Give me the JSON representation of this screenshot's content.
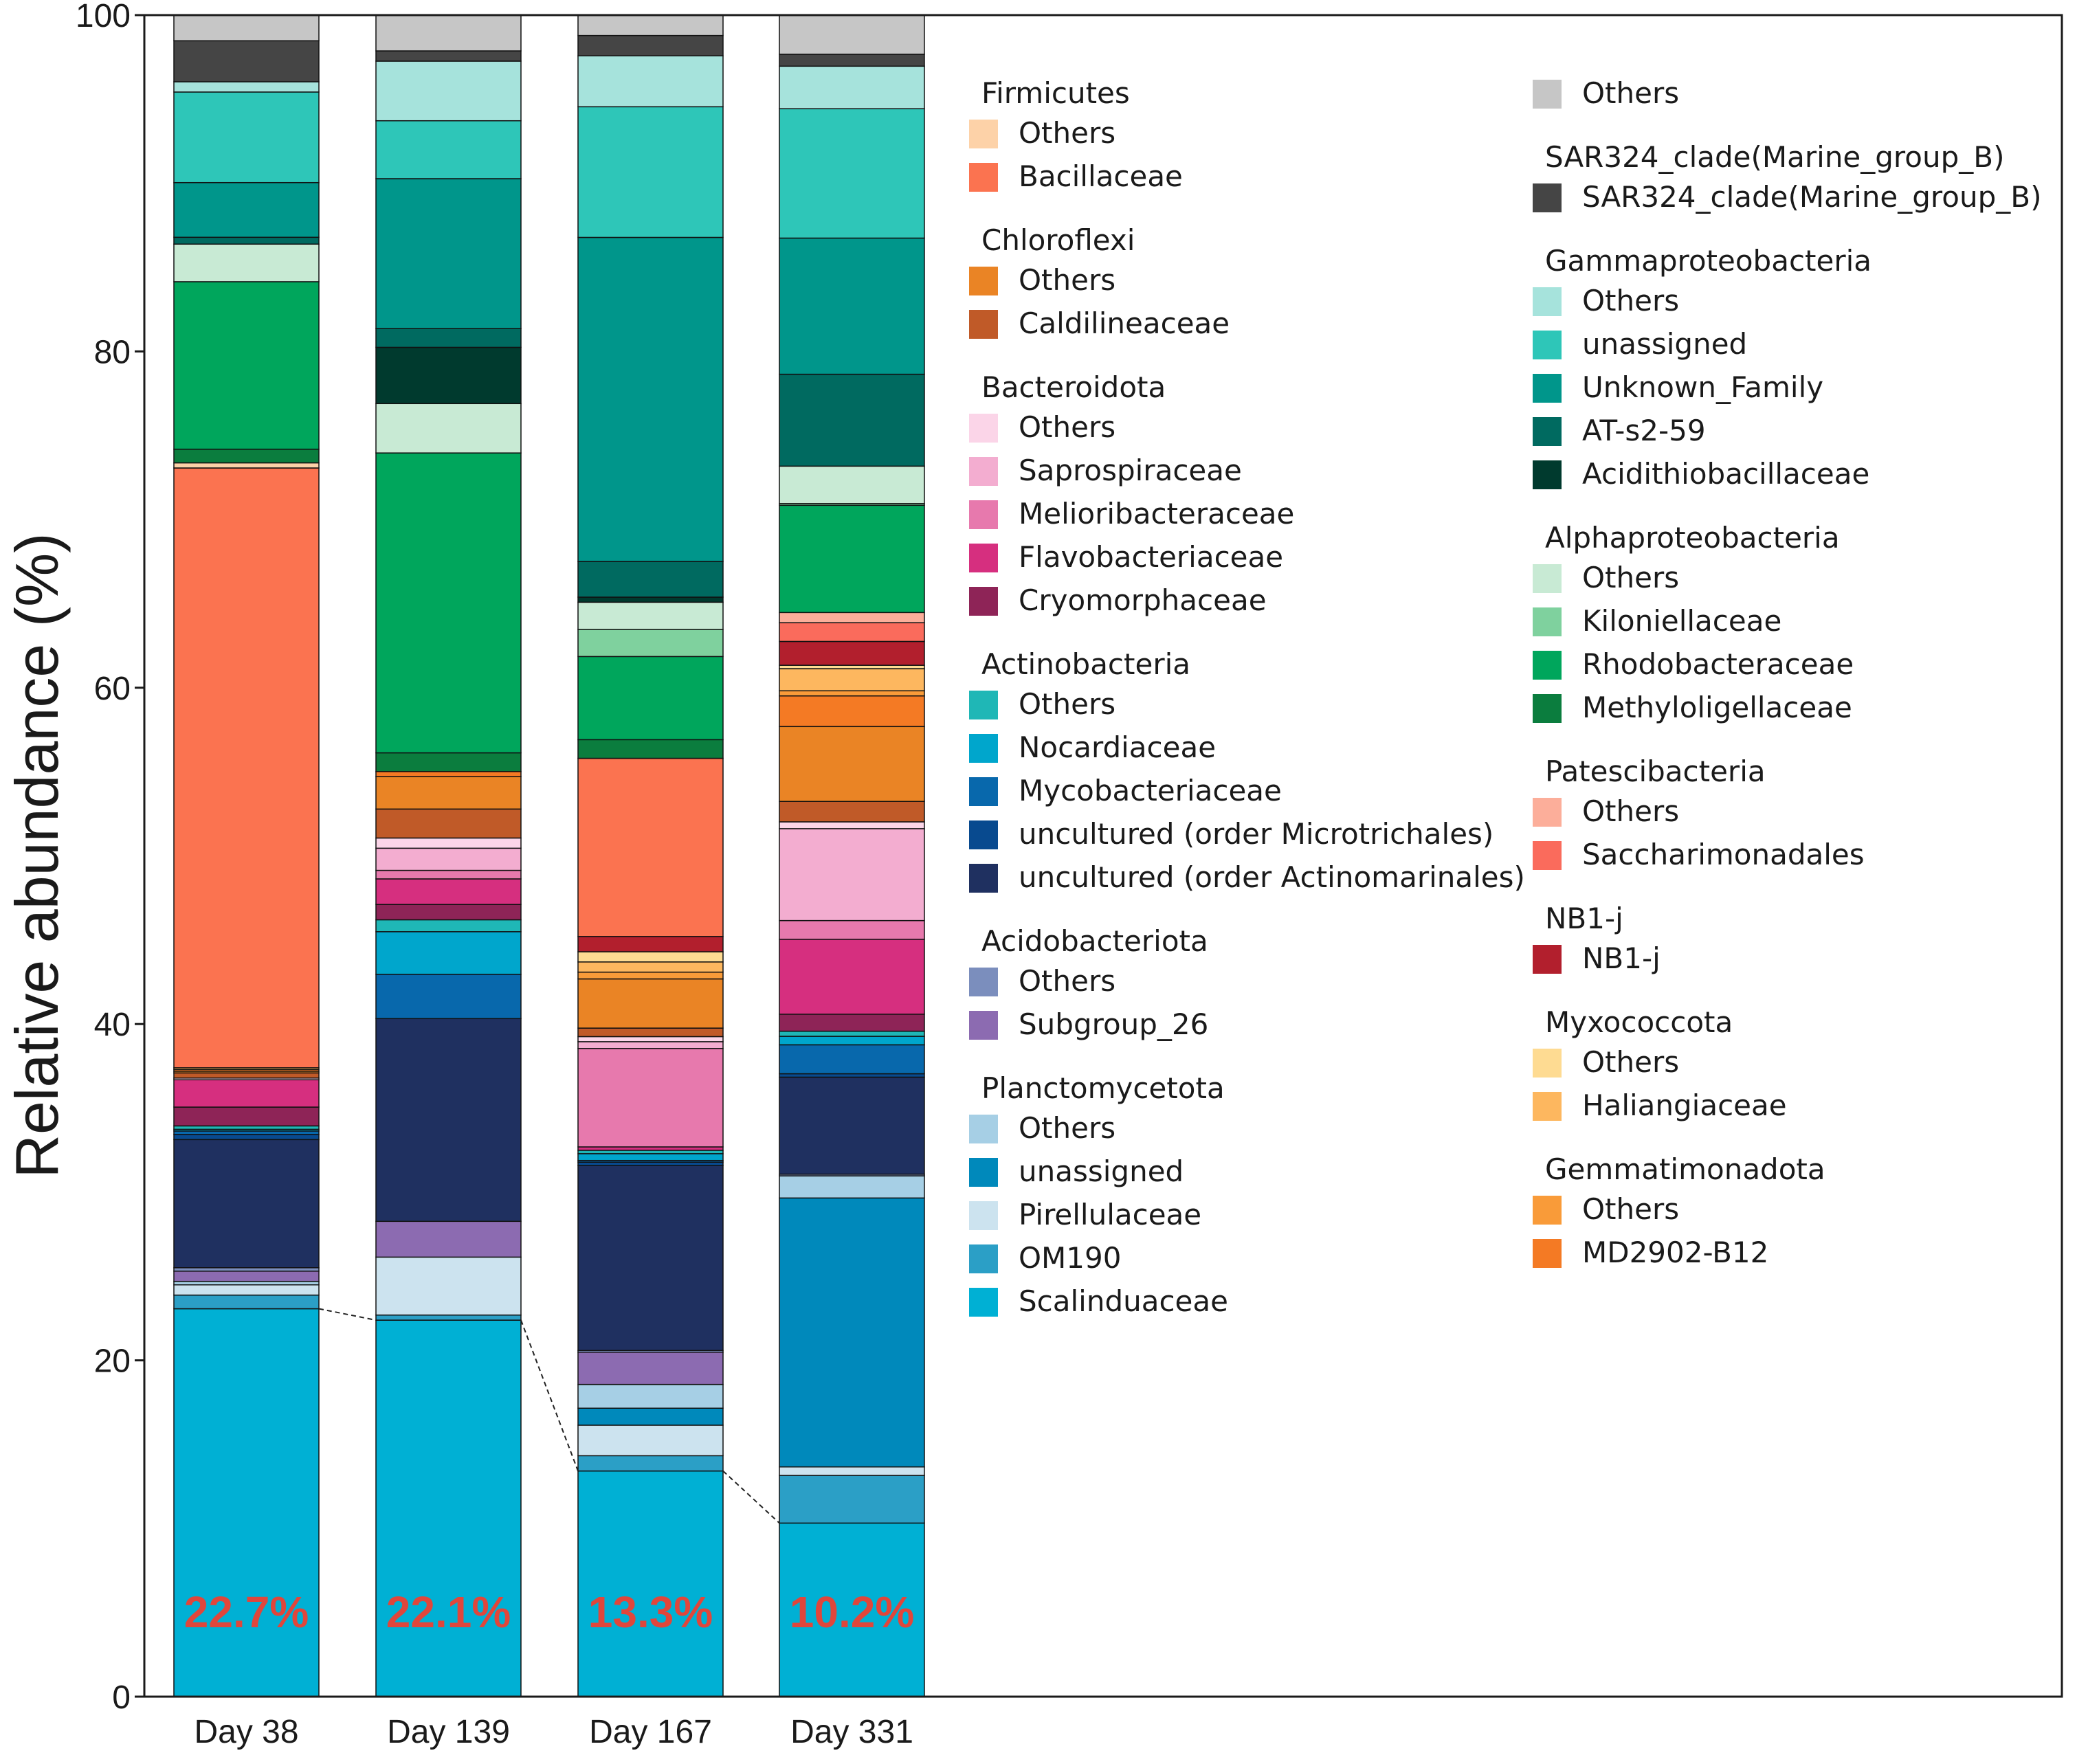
{
  "chart_data": {
    "type": "bar",
    "subtype": "stacked-percent",
    "title": "",
    "xlabel": "",
    "ylabel": "Relative abundance (%)",
    "ylim": [
      0,
      100
    ],
    "yticks": [
      "0",
      "20",
      "40",
      "60",
      "80",
      "100"
    ],
    "categories": [
      "Day 38",
      "Day 139",
      "Day 167",
      "Day 331"
    ],
    "bar_labels": [
      "22.7%",
      "22.1%",
      "13.3%",
      "10.2%"
    ],
    "series": [
      {
        "name": "Scalinduaceae",
        "group": "Planctomycetota",
        "color": "#00b0d4",
        "values": [
          22.7,
          22.1,
          13.3,
          10.2
        ]
      },
      {
        "name": "OM190",
        "group": "Planctomycetota",
        "color": "#2b9fc6",
        "values": [
          0.8,
          0.3,
          0.9,
          2.8
        ]
      },
      {
        "name": "Pirellulaceae",
        "group": "Planctomycetota",
        "color": "#cce3ef",
        "values": [
          0.6,
          3.4,
          1.8,
          0.5
        ]
      },
      {
        "name": "unassigned",
        "group": "Planctomycetota",
        "color": "#0089bb",
        "values": [
          0,
          0,
          1.0,
          15.8
        ]
      },
      {
        "name": "Others",
        "group": "Planctomycetota",
        "color": "#a6cfe5",
        "values": [
          0.2,
          0,
          1.4,
          1.3
        ]
      },
      {
        "name": "Subgroup_26",
        "group": "Acidobacteriota",
        "color": "#8c6bb1",
        "values": [
          0.6,
          2.1,
          1.9,
          0
        ]
      },
      {
        "name": "Others",
        "group": "Acidobacteriota",
        "color": "#7b8ebd",
        "values": [
          0.2,
          0,
          0.1,
          0.1
        ]
      },
      {
        "name": "uncultured (order Actinomarinales)",
        "group": "Actinobacteria",
        "color": "#1f3060",
        "values": [
          7.5,
          11.9,
          10.9,
          5.7
        ]
      },
      {
        "name": "uncultured (order Microtrichales)",
        "group": "Actinobacteria",
        "color": "#084a8f",
        "values": [
          0.3,
          0,
          0.2,
          0.2
        ]
      },
      {
        "name": "Mycobacteriaceae",
        "group": "Actinobacteria",
        "color": "#0868ac",
        "values": [
          0.2,
          2.6,
          0.1,
          1.7
        ]
      },
      {
        "name": "Nocardiaceae",
        "group": "Actinobacteria",
        "color": "#00a6cc",
        "values": [
          0.1,
          2.5,
          0.4,
          0.5
        ]
      },
      {
        "name": "Others",
        "group": "Actinobacteria",
        "color": "#1fb7b6",
        "values": [
          0.2,
          0.7,
          0.2,
          0.3
        ]
      },
      {
        "name": "Cryomorphaceae",
        "group": "Bacteroidota",
        "color": "#8e2457",
        "values": [
          1.1,
          0.9,
          0,
          1.0
        ]
      },
      {
        "name": "Flavobacteriaceae",
        "group": "Bacteroidota",
        "color": "#d62f7f",
        "values": [
          1.6,
          1.5,
          0.2,
          4.4
        ]
      },
      {
        "name": "Melioribacteraceae",
        "group": "Bacteroidota",
        "color": "#e779ad",
        "values": [
          0,
          0.5,
          5.8,
          1.1
        ]
      },
      {
        "name": "Saprospiraceae",
        "group": "Bacteroidota",
        "color": "#f3add0",
        "values": [
          0,
          1.3,
          0.4,
          5.4
        ]
      },
      {
        "name": "Others",
        "group": "Bacteroidota",
        "color": "#fbd5e8",
        "values": [
          0.1,
          0.6,
          0.3,
          0.4
        ]
      },
      {
        "name": "Caldilineaceae",
        "group": "Chloroflexi",
        "color": "#c05a28",
        "values": [
          0.3,
          1.7,
          0.5,
          1.2
        ]
      },
      {
        "name": "Others",
        "group": "Chloroflexi",
        "color": "#ea8425",
        "values": [
          0.1,
          1.9,
          2.9,
          4.4
        ]
      },
      {
        "name": "MD2902-B12",
        "group": "Gemmatimonadota",
        "color": "#f47a24",
        "values": [
          0.1,
          0.3,
          0,
          1.8
        ]
      },
      {
        "name": "Others",
        "group": "Gemmatimonadota",
        "color": "#f99b39",
        "values": [
          0,
          0,
          0.4,
          0.3
        ]
      },
      {
        "name": "Haliangiaceae",
        "group": "Myxococcota",
        "color": "#fdb75f",
        "values": [
          0.1,
          0,
          0.6,
          1.3
        ]
      },
      {
        "name": "Others",
        "group": "Myxococcota",
        "color": "#fedb92",
        "values": [
          0,
          0,
          0.6,
          0.2
        ]
      },
      {
        "name": "NB1-j",
        "group": "NB1-j",
        "color": "#b21f2d",
        "values": [
          0,
          0,
          0.9,
          1.4
        ]
      },
      {
        "name": "Saccharimonadales",
        "group": "Patescibacteria",
        "color": "#fa6b5c",
        "values": [
          0,
          0,
          0,
          1.1
        ]
      },
      {
        "name": "Others",
        "group": "Patescibacteria",
        "color": "#fcae9a",
        "values": [
          0,
          0,
          0,
          0.6
        ]
      },
      {
        "name": "Bacillaceae",
        "group": "Firmicutes",
        "color": "#fb7350",
        "values": [
          35.1,
          0,
          10.5,
          0
        ]
      },
      {
        "name": "Others",
        "group": "Firmicutes",
        "color": "#fdd2a8",
        "values": [
          0.3,
          0,
          0,
          0
        ]
      },
      {
        "name": "Methyloligellaceae",
        "group": "Alphaproteobacteria",
        "color": "#0b7d3e",
        "values": [
          0.8,
          1.1,
          1.1,
          0
        ]
      },
      {
        "name": "Rhodobacteraceae",
        "group": "Alphaproteobacteria",
        "color": "#00a65c",
        "values": [
          9.8,
          17.6,
          4.9,
          6.3
        ]
      },
      {
        "name": "Kiloniellaceae",
        "group": "Alphaproteobacteria",
        "color": "#7fd19e",
        "values": [
          0,
          0,
          1.6,
          0.1
        ]
      },
      {
        "name": "Others",
        "group": "Alphaproteobacteria",
        "color": "#c8ead4",
        "values": [
          2.2,
          2.9,
          1.6,
          2.2
        ]
      },
      {
        "name": "Acidithiobacillaceae",
        "group": "Gammaproteobacteria",
        "color": "#003a2e",
        "values": [
          0,
          3.3,
          0.3,
          0
        ]
      },
      {
        "name": "AT-s2-59",
        "group": "Gammaproteobacteria",
        "color": "#006a60",
        "values": [
          0.4,
          1.1,
          2.1,
          5.4
        ]
      },
      {
        "name": "Unknown_Family",
        "group": "Gammaproteobacteria",
        "color": "#00968b",
        "values": [
          3.2,
          8.8,
          19.1,
          8.0
        ]
      },
      {
        "name": "unassigned",
        "group": "Gammaproteobacteria",
        "color": "#2ec6b8",
        "values": [
          5.3,
          3.4,
          7.7,
          7.6
        ]
      },
      {
        "name": "Others",
        "group": "Gammaproteobacteria",
        "color": "#a6e3dc",
        "values": [
          0.6,
          3.5,
          3.0,
          2.5
        ]
      },
      {
        "name": "SAR324_clade(Marine_group_B)",
        "group": "SAR324_clade(Marine_group_B)",
        "color": "#454545",
        "values": [
          2.4,
          0.6,
          1.2,
          0.7
        ]
      },
      {
        "name": "Others",
        "group": "Others",
        "color": "#c6c6c6",
        "values": [
          1.5,
          2.1,
          1.2,
          2.3
        ]
      }
    ],
    "trend_line_connects": "Scalinduaceae",
    "legend": {
      "placement": "right",
      "columns": [
        [
          {
            "title": "Firmicutes",
            "items": [
              {
                "label": "Others",
                "color": "#fdd2a8"
              },
              {
                "label": "Bacillaceae",
                "color": "#fb7350"
              }
            ]
          },
          {
            "title": "Chloroflexi",
            "items": [
              {
                "label": "Others",
                "color": "#ea8425"
              },
              {
                "label": "Caldilineaceae",
                "color": "#c05a28"
              }
            ]
          },
          {
            "title": "Bacteroidota",
            "items": [
              {
                "label": "Others",
                "color": "#fbd5e8"
              },
              {
                "label": "Saprospiraceae",
                "color": "#f3add0"
              },
              {
                "label": "Melioribacteraceae",
                "color": "#e779ad"
              },
              {
                "label": "Flavobacteriaceae",
                "color": "#d62f7f"
              },
              {
                "label": "Cryomorphaceae",
                "color": "#8e2457"
              }
            ]
          },
          {
            "title": "Actinobacteria",
            "items": [
              {
                "label": "Others",
                "color": "#1fb7b6"
              },
              {
                "label": "Nocardiaceae",
                "color": "#00a6cc"
              },
              {
                "label": "Mycobacteriaceae",
                "color": "#0868ac"
              },
              {
                "label": "uncultured (order Microtrichales)",
                "color": "#084a8f"
              },
              {
                "label": "uncultured (order Actinomarinales)",
                "color": "#1f3060"
              }
            ]
          },
          {
            "title": "Acidobacteriota",
            "items": [
              {
                "label": "Others",
                "color": "#7b8ebd"
              },
              {
                "label": "Subgroup_26",
                "color": "#8c6bb1"
              }
            ]
          },
          {
            "title": "Planctomycetota",
            "items": [
              {
                "label": "Others",
                "color": "#a6cfe5"
              },
              {
                "label": "unassigned",
                "color": "#0089bb"
              },
              {
                "label": "Pirellulaceae",
                "color": "#cce3ef"
              },
              {
                "label": "OM190",
                "color": "#2b9fc6"
              },
              {
                "label": "Scalinduaceae",
                "color": "#00b0d4"
              }
            ]
          }
        ],
        [
          {
            "title": "",
            "items": [
              {
                "label": "Others",
                "color": "#c6c6c6"
              }
            ]
          },
          {
            "title": "SAR324_clade(Marine_group_B)",
            "items": [
              {
                "label": "SAR324_clade(Marine_group_B)",
                "color": "#454545"
              }
            ]
          },
          {
            "title": "Gammaproteobacteria",
            "items": [
              {
                "label": "Others",
                "color": "#a6e3dc"
              },
              {
                "label": "unassigned",
                "color": "#2ec6b8"
              },
              {
                "label": "Unknown_Family",
                "color": "#00968b"
              },
              {
                "label": "AT-s2-59",
                "color": "#006a60"
              },
              {
                "label": "Acidithiobacillaceae",
                "color": "#003a2e"
              }
            ]
          },
          {
            "title": "Alphaproteobacteria",
            "items": [
              {
                "label": "Others",
                "color": "#c8ead4"
              },
              {
                "label": "Kiloniellaceae",
                "color": "#7fd19e"
              },
              {
                "label": "Rhodobacteraceae",
                "color": "#00a65c"
              },
              {
                "label": "Methyloligellaceae",
                "color": "#0b7d3e"
              }
            ]
          },
          {
            "title": "Patescibacteria",
            "items": [
              {
                "label": "Others",
                "color": "#fcae9a"
              },
              {
                "label": "Saccharimonadales",
                "color": "#fa6b5c"
              }
            ]
          },
          {
            "title": "NB1-j",
            "items": [
              {
                "label": "NB1-j",
                "color": "#b21f2d"
              }
            ]
          },
          {
            "title": "Myxococcota",
            "items": [
              {
                "label": "Others",
                "color": "#fedb92"
              },
              {
                "label": "Haliangiaceae",
                "color": "#fdb75f"
              }
            ]
          },
          {
            "title": "Gemmatimonadota",
            "items": [
              {
                "label": "Others",
                "color": "#f99b39"
              },
              {
                "label": "MD2902-B12",
                "color": "#f47a24"
              }
            ]
          }
        ]
      ]
    }
  }
}
